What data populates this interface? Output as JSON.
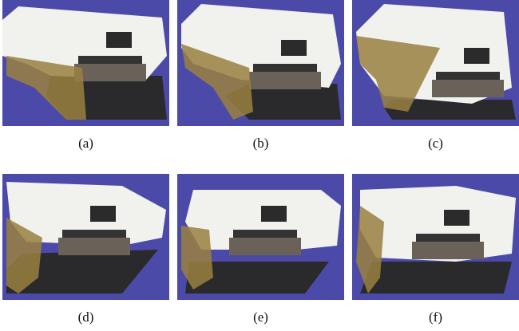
{
  "figure": {
    "panels": [
      {
        "caption": "(a)"
      },
      {
        "caption": "(b)"
      },
      {
        "caption": "(c)"
      },
      {
        "caption": "(d)"
      },
      {
        "caption": "(e)"
      },
      {
        "caption": "(f)"
      }
    ]
  }
}
